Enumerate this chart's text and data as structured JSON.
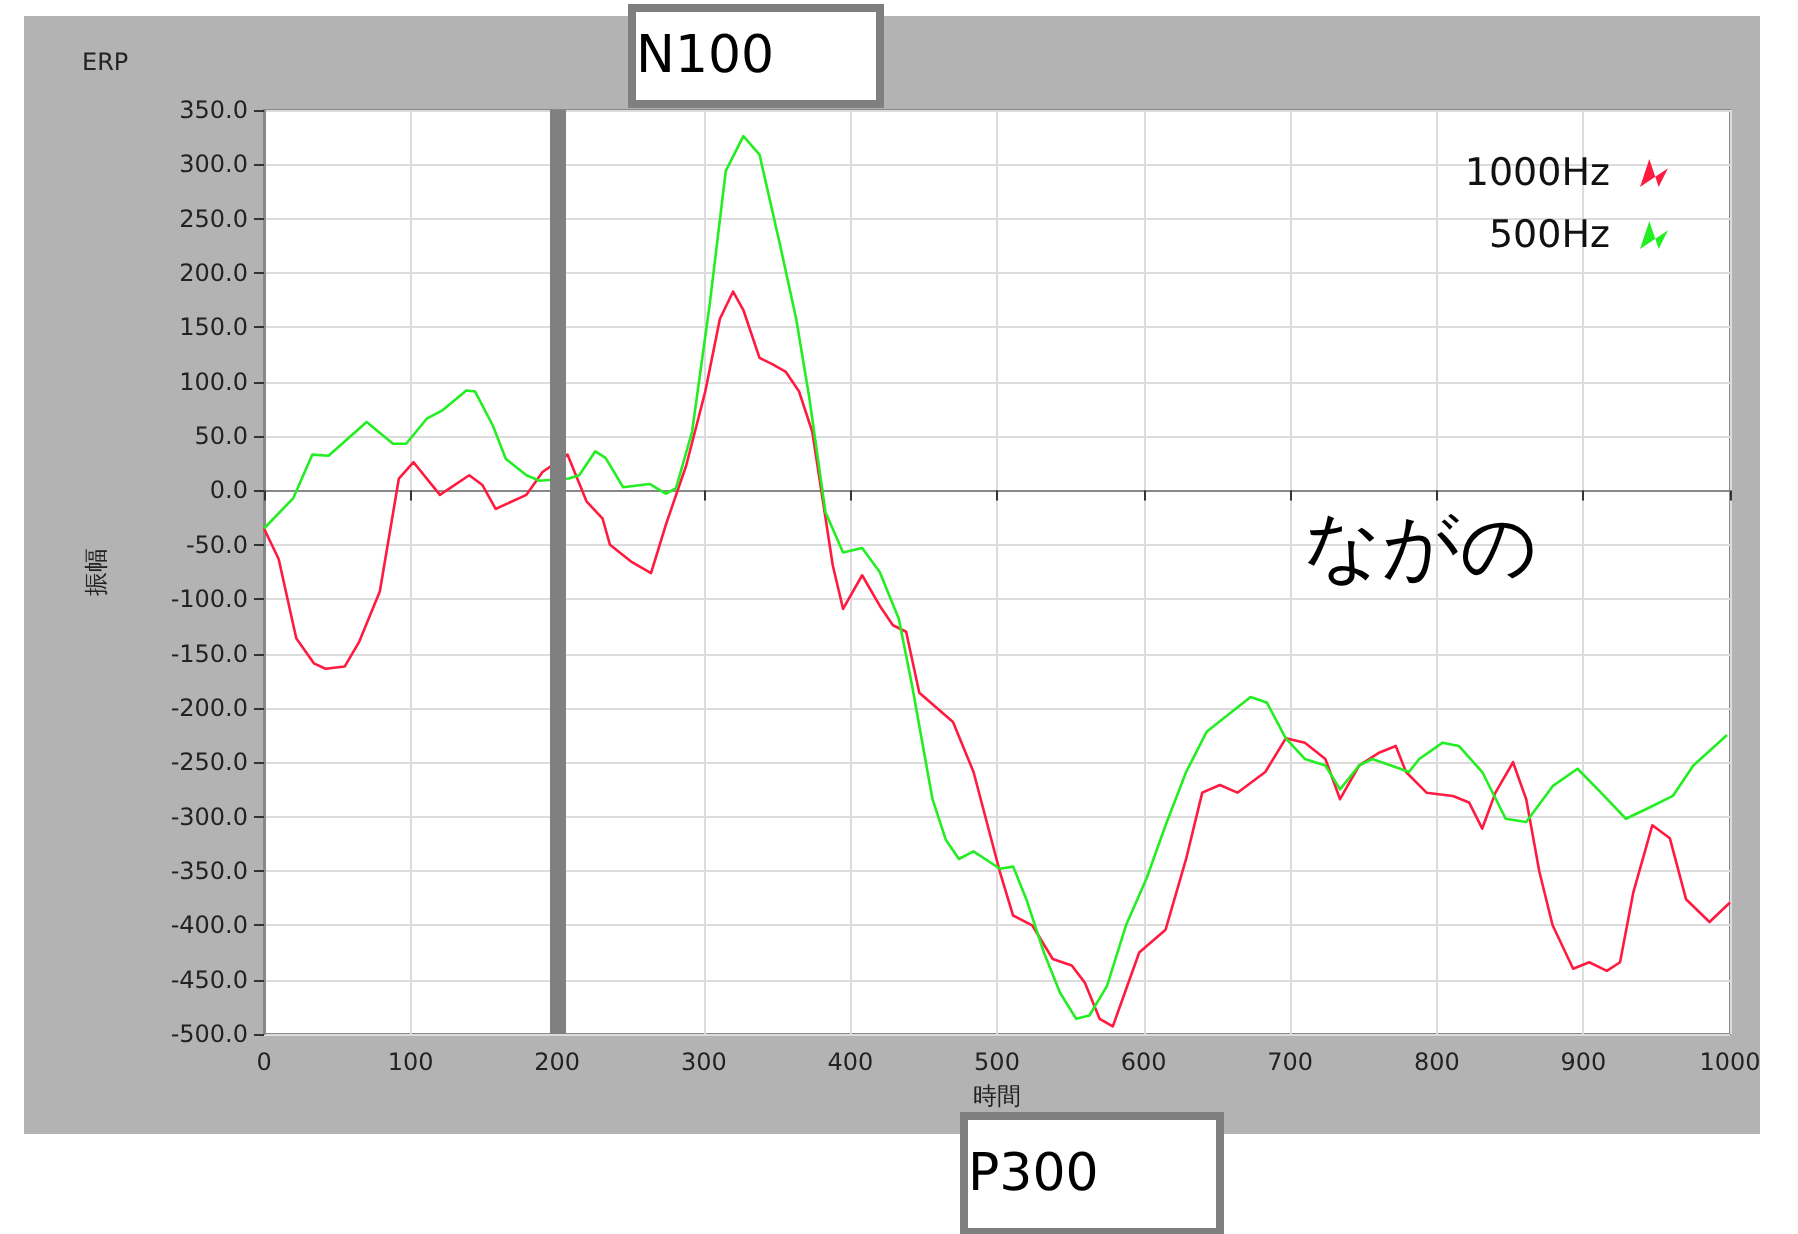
{
  "chart_data": {
    "type": "line",
    "title": "ERP",
    "xlabel": "時間",
    "ylabel": "振幅",
    "xlim": [
      0,
      1000
    ],
    "xticks": [
      0,
      100,
      200,
      300,
      400,
      500,
      600,
      700,
      800,
      900,
      1000
    ],
    "ylim": [
      -500,
      350
    ],
    "yticks": [
      {
        "value": -500,
        "label": "-500.0"
      },
      {
        "value": -450,
        "label": "-450.0"
      },
      {
        "value": -400,
        "label": "-400.0"
      },
      {
        "value": -350,
        "label": "-350.0"
      },
      {
        "value": -300,
        "label": "-300.0"
      },
      {
        "value": -250,
        "label": "-250.0"
      },
      {
        "value": -200,
        "label": "-200.0"
      },
      {
        "value": -150,
        "label": "-150.0"
      },
      {
        "value": -100,
        "label": "-100.0"
      },
      {
        "value": -50,
        "label": "-50.0"
      },
      {
        "value": 0,
        "label": "0.0"
      },
      {
        "value": 50,
        "label": "50.0"
      },
      {
        "value": 100,
        "label": "100.0"
      },
      {
        "value": 150,
        "label": "150.0"
      },
      {
        "value": 200,
        "label": "200.0"
      },
      {
        "value": 250,
        "label": "250.0"
      },
      {
        "value": 300,
        "label": "300.0"
      },
      {
        "value": 350,
        "label": "350.0"
      }
    ],
    "grid": true,
    "legend": "top right",
    "marker": "none",
    "line_style": "solid",
    "series": [
      {
        "name": "1000Hz",
        "color": "#ff1a40",
        "x": [
          0,
          10,
          22,
          34,
          42,
          55,
          65,
          79,
          92,
          102,
          120,
          140,
          149,
          158,
          179,
          190,
          207,
          220,
          231,
          236,
          251,
          264,
          274,
          288,
          301,
          311,
          320,
          327,
          338,
          347,
          356,
          365,
          374,
          388,
          395,
          408,
          420,
          429,
          438,
          447,
          470,
          484,
          502,
          511,
          524,
          538,
          551,
          560,
          570,
          579,
          597,
          615,
          629,
          640,
          652,
          664,
          683,
          697,
          710,
          724,
          734,
          747,
          761,
          772,
          779,
          793,
          811,
          822,
          831,
          840,
          852,
          861,
          870,
          879,
          893,
          904,
          916,
          925,
          934,
          947,
          959,
          970,
          986,
          1000
        ],
        "values": [
          -35,
          -63,
          -136,
          -159,
          -164,
          -162,
          -139,
          -93,
          11,
          26,
          -4,
          14,
          5,
          -17,
          -4,
          17,
          33,
          -10,
          -26,
          -50,
          -66,
          -76,
          -32,
          23,
          91,
          158,
          183,
          166,
          122,
          116,
          109,
          91,
          54,
          -69,
          -109,
          -78,
          -106,
          -124,
          -130,
          -186,
          -213,
          -259,
          -351,
          -391,
          -400,
          -431,
          -437,
          -453,
          -486,
          -493,
          -425,
          -404,
          -339,
          -278,
          -271,
          -278,
          -259,
          -228,
          -232,
          -247,
          -284,
          -253,
          -241,
          -235,
          -259,
          -278,
          -281,
          -287,
          -311,
          -278,
          -250,
          -284,
          -351,
          -400,
          -440,
          -434,
          -442,
          -434,
          -370,
          -308,
          -320,
          -376,
          -397,
          -379
        ]
      },
      {
        "name": "500Hz",
        "color": "#22ee22",
        "x": [
          0,
          20,
          33,
          44,
          70,
          88,
          97,
          111,
          122,
          138,
          144,
          156,
          165,
          179,
          188,
          208,
          215,
          226,
          233,
          245,
          263,
          274,
          281,
          292,
          304,
          315,
          327,
          338,
          352,
          363,
          372,
          383,
          395,
          408,
          420,
          433,
          442,
          456,
          465,
          474,
          484,
          502,
          511,
          520,
          532,
          543,
          554,
          563,
          575,
          588,
          602,
          615,
          629,
          643,
          657,
          673,
          684,
          697,
          710,
          724,
          734,
          747,
          756,
          775,
          781,
          788,
          804,
          815,
          831,
          847,
          861,
          879,
          896,
          912,
          929,
          943,
          961,
          975,
          998
        ],
        "values": [
          -35,
          -7,
          33,
          32,
          63,
          43,
          43,
          66,
          74,
          92,
          91,
          60,
          29,
          14,
          9,
          11,
          14,
          36,
          30,
          3,
          6,
          -3,
          2,
          54,
          171,
          294,
          326,
          309,
          226,
          158,
          85,
          -20,
          -57,
          -53,
          -75,
          -118,
          -179,
          -284,
          -321,
          -339,
          -332,
          -348,
          -346,
          -376,
          -425,
          -462,
          -486,
          -483,
          -456,
          -400,
          -357,
          -308,
          -259,
          -222,
          -207,
          -190,
          -195,
          -228,
          -247,
          -253,
          -275,
          -253,
          -247,
          -256,
          -259,
          -247,
          -232,
          -235,
          -259,
          -302,
          -305,
          -272,
          -256,
          -278,
          -302,
          -293,
          -281,
          -253,
          -225
        ]
      }
    ],
    "ref_lines": [
      {
        "axis": "x",
        "value": 200,
        "color": "#808080"
      }
    ],
    "annotations": [
      "N100",
      "P300",
      "ながの"
    ]
  }
}
